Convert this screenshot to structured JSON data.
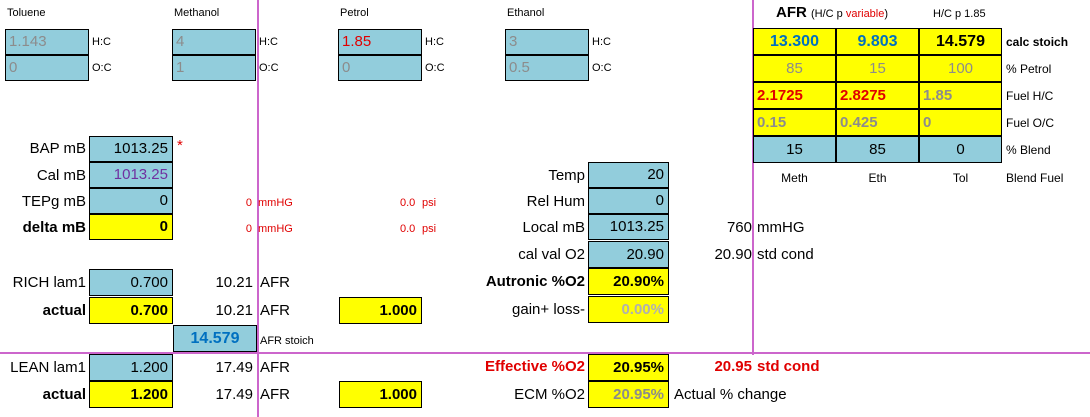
{
  "fuels": {
    "toluene": {
      "name": "Toluene",
      "hc": "1.143",
      "oc": "0"
    },
    "methanol": {
      "name": "Methanol",
      "hc": "4",
      "oc": "1"
    },
    "petrol": {
      "name": "Petrol",
      "hc": "1.85",
      "oc": "0"
    },
    "ethanol": {
      "name": "Ethanol",
      "hc": "3",
      "oc": "0.5"
    },
    "hc_label": "H:C",
    "oc_label": "O:C"
  },
  "afr_table": {
    "title": "AFR",
    "subtitle_open": "(H/C p ",
    "subtitle_variable": "variable",
    "subtitle_close": ")",
    "hc_fixed_label": "H/C p 1.85",
    "rows": [
      {
        "values": [
          "13.300",
          "9.803",
          "14.579"
        ],
        "label": "calc stoich"
      },
      {
        "values": [
          "85",
          "15",
          "100"
        ],
        "label": "% Petrol"
      },
      {
        "values": [
          "2.1725",
          "2.8275",
          "1.85"
        ],
        "label": "Fuel H/C"
      },
      {
        "values": [
          "0.15",
          "0.425",
          "0"
        ],
        "label": "Fuel O/C"
      },
      {
        "values": [
          "15",
          "85",
          "0"
        ],
        "label": "% Blend"
      }
    ],
    "columns": [
      "Meth",
      "Eth",
      "Tol"
    ],
    "blend_fuel_label": "Blend Fuel"
  },
  "pressure": {
    "bap_label": "BAP mB",
    "bap_value": "1013.25",
    "asterisk": "*",
    "cal_label": "Cal mB",
    "cal_value": "1013.25",
    "tepg_label": "TEPg mB",
    "tepg_value": "0",
    "tepg_mmhg": "0",
    "tepg_mmhg_unit": "mmHG",
    "tepg_psi": "0.0",
    "tepg_psi_unit": "psi",
    "delta_label": "delta mB",
    "delta_value": "0",
    "delta_mmhg": "0",
    "delta_mmhg_unit": "mmHG",
    "delta_psi": "0.0",
    "delta_psi_unit": "psi"
  },
  "env": {
    "temp_label": "Temp",
    "temp_value": "20",
    "relhum_label": "Rel Hum",
    "relhum_value": "0",
    "local_label": "Local mB",
    "local_value": "1013.25",
    "local_mmhg": "760",
    "local_mmhg_unit": "mmHG",
    "calo2_label": "cal val O2",
    "calo2_value": "20.90",
    "calo2_std": "20.90",
    "calo2_std_label": "std cond",
    "autronic_label": "Autronic %O2",
    "autronic_value": "20.90%",
    "gain_label": "gain+ loss-",
    "gain_value": "0.00%",
    "effective_label": "Effective %O2",
    "effective_value": "20.95%",
    "effective_std": "20.95",
    "effective_std_label": "std cond",
    "ecm_label": "ECM %O2",
    "ecm_value": "20.95%",
    "ecm_change_label": "Actual % change"
  },
  "lambda": {
    "rich_label": "RICH lam1",
    "rich_value": "0.700",
    "rich_afr": "10.21",
    "rich_afr_unit": "AFR",
    "rich_actual_label": "actual",
    "rich_actual_value": "0.700",
    "rich_actual_afr": "10.21",
    "rich_actual_afr_unit": "AFR",
    "rich_factor": "1.000",
    "stoich_value": "14.579",
    "stoich_label": "AFR stoich",
    "lean_label": "LEAN lam1",
    "lean_value": "1.200",
    "lean_afr": "17.49",
    "lean_afr_unit": "AFR",
    "lean_actual_label": "actual",
    "lean_actual_value": "1.200",
    "lean_actual_afr": "17.49",
    "lean_actual_afr_unit": "AFR",
    "lean_factor": "1.000"
  },
  "colors": {
    "cell_blue": "#92cddc",
    "cell_yellow": "#ffff00",
    "guide_line": "#cc66cc",
    "red": "#e00000"
  }
}
